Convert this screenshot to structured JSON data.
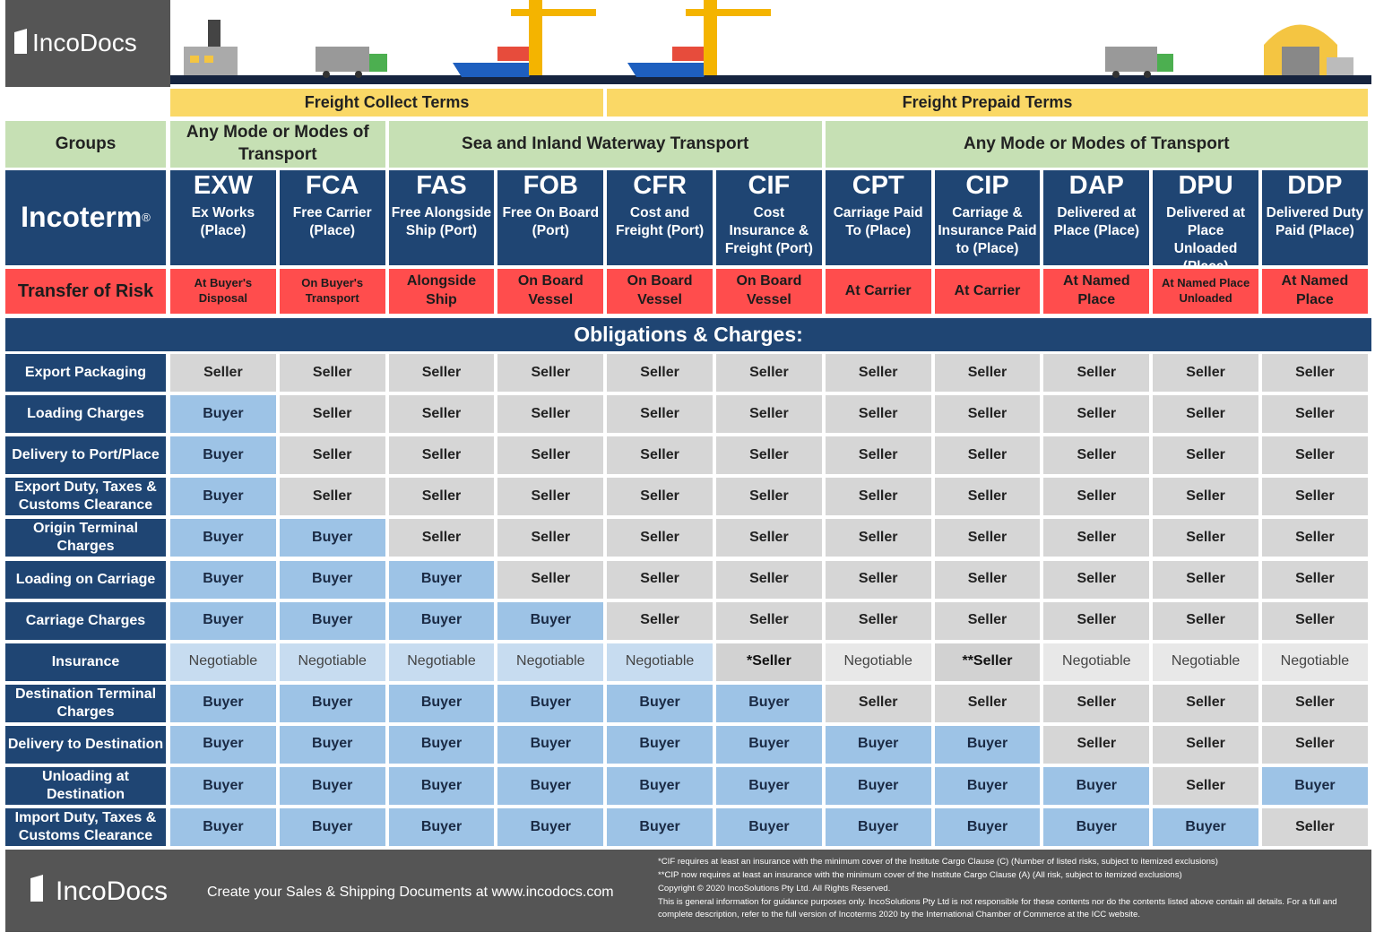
{
  "logo": "IncoDocs",
  "freight_terms": [
    "Freight Collect Terms",
    "Freight Prepaid Terms"
  ],
  "groups": {
    "label": "Groups",
    "items": [
      "Any Mode or Modes of Transport",
      "Sea and Inland Waterway Transport",
      "Any Mode or Modes of Transport"
    ]
  },
  "incoterm_label": "Incoterm",
  "registered": "®",
  "incoterms": [
    {
      "code": "EXW",
      "name": "Ex Works (Place)"
    },
    {
      "code": "FCA",
      "name": "Free Carrier (Place)"
    },
    {
      "code": "FAS",
      "name": "Free Alongside Ship (Port)"
    },
    {
      "code": "FOB",
      "name": "Free On Board (Port)"
    },
    {
      "code": "CFR",
      "name": "Cost and Freight (Port)"
    },
    {
      "code": "CIF",
      "name": "Cost Insurance & Freight (Port)"
    },
    {
      "code": "CPT",
      "name": "Carriage Paid To (Place)"
    },
    {
      "code": "CIP",
      "name": "Carriage & Insurance Paid to (Place)"
    },
    {
      "code": "DAP",
      "name": "Delivered at Place (Place)"
    },
    {
      "code": "DPU",
      "name": "Delivered at Place Unloaded (Place)"
    },
    {
      "code": "DDP",
      "name": "Delivered Duty Paid (Place)"
    }
  ],
  "risk_label": "Transfer of Risk",
  "risk": [
    "At Buyer's Disposal",
    "On Buyer's Transport",
    "Alongside Ship",
    "On Board Vessel",
    "On Board Vessel",
    "On Board Vessel",
    "At Carrier",
    "At Carrier",
    "At Named Place",
    "At Named Place Unloaded",
    "At Named Place"
  ],
  "obligations_title": "Obligations & Charges:",
  "rows": [
    {
      "label": "Export Packaging",
      "cells": [
        "Seller",
        "Seller",
        "Seller",
        "Seller",
        "Seller",
        "Seller",
        "Seller",
        "Seller",
        "Seller",
        "Seller",
        "Seller"
      ]
    },
    {
      "label": "Loading Charges",
      "cells": [
        "Buyer",
        "Seller",
        "Seller",
        "Seller",
        "Seller",
        "Seller",
        "Seller",
        "Seller",
        "Seller",
        "Seller",
        "Seller"
      ]
    },
    {
      "label": "Delivery to Port/Place",
      "cells": [
        "Buyer",
        "Seller",
        "Seller",
        "Seller",
        "Seller",
        "Seller",
        "Seller",
        "Seller",
        "Seller",
        "Seller",
        "Seller"
      ]
    },
    {
      "label": "Export Duty, Taxes & Customs Clearance",
      "cells": [
        "Buyer",
        "Seller",
        "Seller",
        "Seller",
        "Seller",
        "Seller",
        "Seller",
        "Seller",
        "Seller",
        "Seller",
        "Seller"
      ]
    },
    {
      "label": "Origin Terminal Charges",
      "cells": [
        "Buyer",
        "Buyer",
        "Seller",
        "Seller",
        "Seller",
        "Seller",
        "Seller",
        "Seller",
        "Seller",
        "Seller",
        "Seller"
      ]
    },
    {
      "label": "Loading on Carriage",
      "cells": [
        "Buyer",
        "Buyer",
        "Buyer",
        "Seller",
        "Seller",
        "Seller",
        "Seller",
        "Seller",
        "Seller",
        "Seller",
        "Seller"
      ]
    },
    {
      "label": "Carriage Charges",
      "cells": [
        "Buyer",
        "Buyer",
        "Buyer",
        "Buyer",
        "Seller",
        "Seller",
        "Seller",
        "Seller",
        "Seller",
        "Seller",
        "Seller"
      ]
    },
    {
      "label": "Insurance",
      "cells": [
        "Negotiable",
        "Negotiable",
        "Negotiable",
        "Negotiable",
        "Negotiable",
        "*Seller",
        "Negotiable",
        "**Seller",
        "Negotiable",
        "Negotiable",
        "Negotiable"
      ]
    },
    {
      "label": "Destination Terminal Charges",
      "cells": [
        "Buyer",
        "Buyer",
        "Buyer",
        "Buyer",
        "Buyer",
        "Buyer",
        "Seller",
        "Seller",
        "Seller",
        "Seller",
        "Seller"
      ]
    },
    {
      "label": "Delivery to Destination",
      "cells": [
        "Buyer",
        "Buyer",
        "Buyer",
        "Buyer",
        "Buyer",
        "Buyer",
        "Buyer",
        "Buyer",
        "Seller",
        "Seller",
        "Seller"
      ]
    },
    {
      "label": "Unloading at Destination",
      "cells": [
        "Buyer",
        "Buyer",
        "Buyer",
        "Buyer",
        "Buyer",
        "Buyer",
        "Buyer",
        "Buyer",
        "Buyer",
        "Seller",
        "Buyer"
      ]
    },
    {
      "label": "Import Duty, Taxes & Customs Clearance",
      "cells": [
        "Buyer",
        "Buyer",
        "Buyer",
        "Buyer",
        "Buyer",
        "Buyer",
        "Buyer",
        "Buyer",
        "Buyer",
        "Buyer",
        "Seller"
      ]
    }
  ],
  "footer": {
    "logo": "IncoDocs",
    "tagline": "Create your Sales & Shipping Documents at www.incodocs.com",
    "notes": [
      "*CIF requires at least an insurance with the minimum cover of the Institute Cargo Clause (C) (Number of listed risks, subject to itemized exclusions)",
      "**CIP now requires at least an insurance with the minimum cover of the Institute Cargo Clause (A) (All risk, subject to itemized exclusions)",
      "Copyright © 2020 IncoSolutions Pty Ltd. All Rights Reserved.",
      "This is general information for guidance purposes only. IncoSolutions Pty Ltd is not responsible for these contents nor do the contents listed above contain all details. For a full and complete description, refer to the full version of Incoterms 2020 by the International Chamber of Commerce at the ICC website."
    ]
  }
}
